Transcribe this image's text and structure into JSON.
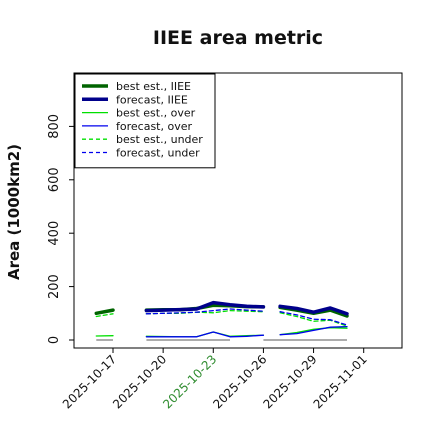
{
  "chart_data": {
    "type": "line",
    "title": "IIEE area metric",
    "xlabel": "",
    "ylabel": "Area (1000km2)",
    "x_ticks": [
      "2025-10-17",
      "2025-10-20",
      "2025-10-23",
      "2025-10-26",
      "2025-10-29",
      "2025-11-01"
    ],
    "highlighted_tick": "2025-10-23",
    "highlight_color": "#2e8b2e",
    "ylim": [
      -30,
      1000
    ],
    "yticks": [
      0,
      200,
      400,
      600,
      800
    ],
    "grid": false,
    "legend_position": "top-left",
    "segments": [
      {
        "x": [
          "2025-10-16",
          "2025-10-17"
        ]
      },
      {
        "x": [
          "2025-10-19",
          "2025-10-20",
          "2025-10-21",
          "2025-10-22",
          "2025-10-23",
          "2025-10-24",
          "2025-10-25",
          "2025-10-26"
        ]
      },
      {
        "x": [
          "2025-10-27",
          "2025-10-28",
          "2025-10-29",
          "2025-10-30",
          "2025-10-31"
        ]
      }
    ],
    "series": [
      {
        "name": "best est., IIEE",
        "color": "#006400",
        "width": 3.5,
        "dash": "",
        "values": [
          [
            100,
            112
          ],
          [
            112,
            113,
            113,
            118,
            130,
            128,
            125,
            124
          ],
          [
            122,
            112,
            100,
            112,
            90
          ]
        ]
      },
      {
        "name": "forecast, IIEE",
        "color": "#00008b",
        "width": 3.5,
        "dash": "",
        "values": [
          [
            null,
            110
          ],
          [
            110,
            112,
            114,
            116,
            140,
            132,
            126,
            124
          ],
          [
            126,
            118,
            104,
            120,
            98
          ]
        ]
      },
      {
        "name": "best est., over",
        "color": "#00e000",
        "width": 1.3,
        "dash": "",
        "values": [
          [
            15,
            16
          ],
          [
            14,
            13,
            12,
            12,
            30,
            14,
            16,
            18
          ],
          [
            20,
            28,
            40,
            46,
            44
          ]
        ]
      },
      {
        "name": "forecast, over",
        "color": "#0000ee",
        "width": 1.3,
        "dash": "",
        "values": [
          [
            null,
            12
          ],
          [
            12,
            12,
            12,
            12,
            30,
            12,
            14,
            18
          ],
          [
            20,
            24,
            36,
            48,
            50
          ]
        ]
      },
      {
        "name": "best est., under",
        "color": "#00e000",
        "width": 1.3,
        "dash": "4,3",
        "values": [
          [
            88,
            98
          ],
          [
            98,
            100,
            100,
            104,
            102,
            110,
            108,
            106
          ],
          [
            102,
            88,
            70,
            74,
            52
          ]
        ]
      },
      {
        "name": "forecast, under",
        "color": "#0000ee",
        "width": 1.3,
        "dash": "4,3",
        "values": [
          [
            null,
            98
          ],
          [
            98,
            100,
            102,
            104,
            110,
            116,
            112,
            108
          ],
          [
            106,
            94,
            78,
            76,
            56
          ]
        ]
      }
    ],
    "baseline_bars": [
      {
        "from": "2025-10-16",
        "to": "2025-10-17",
        "value": 0
      },
      {
        "from": "2025-10-19",
        "to": "2025-10-24",
        "value": 0
      },
      {
        "from": "2025-10-26",
        "to": "2025-10-31",
        "value": 0
      }
    ],
    "baseline_color": "#909090"
  }
}
